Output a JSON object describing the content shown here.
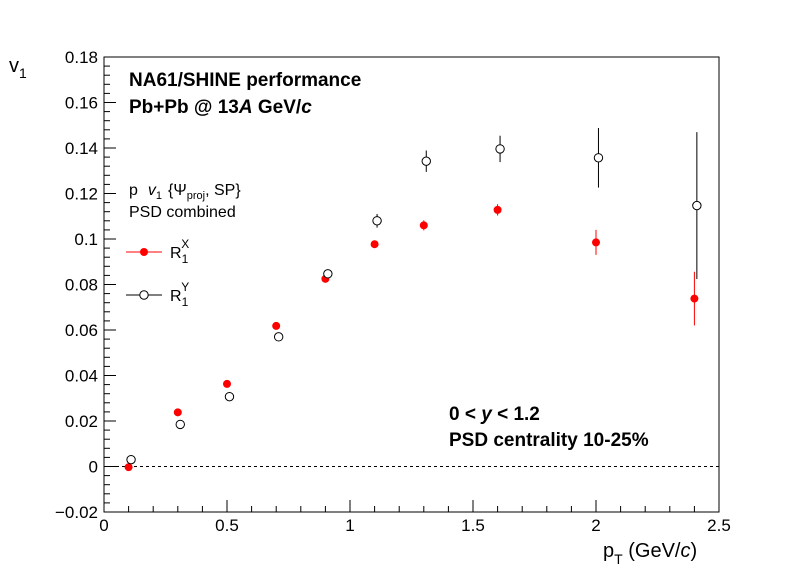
{
  "chart_data": {
    "type": "scatter",
    "title": "",
    "xlabel": "p_T (GeV/c)",
    "ylabel": "v_1",
    "xlim": [
      0,
      2.5
    ],
    "ylim": [
      -0.02,
      0.18
    ],
    "x_ticks": [
      0,
      0.5,
      1,
      1.5,
      2,
      2.5
    ],
    "x_tick_labels": [
      "0",
      "0.5",
      "1",
      "1.5",
      "2",
      "2.5"
    ],
    "y_ticks": [
      -0.02,
      0,
      0.02,
      0.04,
      0.06,
      0.08,
      0.1,
      0.12,
      0.14,
      0.16,
      0.18
    ],
    "y_tick_labels": [
      "−0.02",
      "0",
      "0.02",
      "0.04",
      "0.06",
      "0.08",
      "0.1",
      "0.12",
      "0.14",
      "0.16",
      "0.18"
    ],
    "grid": false,
    "reference_line": {
      "y": 0,
      "style": "dashed"
    },
    "annotations": {
      "line1": "NA61/SHINE performance",
      "line2_prefix": "Pb+Pb @ 13",
      "line2_A": "A",
      "line2_mid": " GeV/",
      "line2_c": "c",
      "legend_header_p": "p",
      "legend_header_v": "v",
      "legend_header_v_sub": "1",
      "legend_header_open": "{Ψ",
      "legend_header_psi_sub": "proj",
      "legend_header_close": ", SP}",
      "legend_header_line2": "PSD combined",
      "rapidity_prefix": "0 < ",
      "rapidity_y": "y",
      "rapidity_suffix": " < 1.2",
      "centrality": "PSD centrality 10-25%"
    },
    "legend_position": "left",
    "series": [
      {
        "name": "R_1^X",
        "label_main": "R",
        "label_sub": "1",
        "label_sup": "X",
        "marker": "filled-circle",
        "color": "#ff0000",
        "x": [
          0.1,
          0.3,
          0.5,
          0.7,
          0.9,
          1.1,
          1.3,
          1.6,
          2.0,
          2.4
        ],
        "y": [
          -0.0003,
          0.0238,
          0.0363,
          0.0618,
          0.0825,
          0.0977,
          0.106,
          0.1128,
          0.0985,
          0.0738
        ],
        "err": [
          0.0012,
          0.001,
          0.001,
          0.001,
          0.0012,
          0.0014,
          0.0022,
          0.0025,
          0.0055,
          0.0118
        ]
      },
      {
        "name": "R_1^Y",
        "label_main": "R",
        "label_sub": "1",
        "label_sup": "Y",
        "marker": "open-circle",
        "color": "#000000",
        "x": [
          0.11,
          0.31,
          0.51,
          0.71,
          0.91,
          1.11,
          1.31,
          1.61,
          2.01,
          2.41
        ],
        "y": [
          0.003,
          0.0185,
          0.0307,
          0.057,
          0.0847,
          0.108,
          0.1342,
          0.1396,
          0.1357,
          0.1147
        ],
        "err": [
          0.0016,
          0.0014,
          0.0013,
          0.0014,
          0.0018,
          0.003,
          0.0047,
          0.0058,
          0.0131,
          0.0323
        ]
      }
    ]
  }
}
